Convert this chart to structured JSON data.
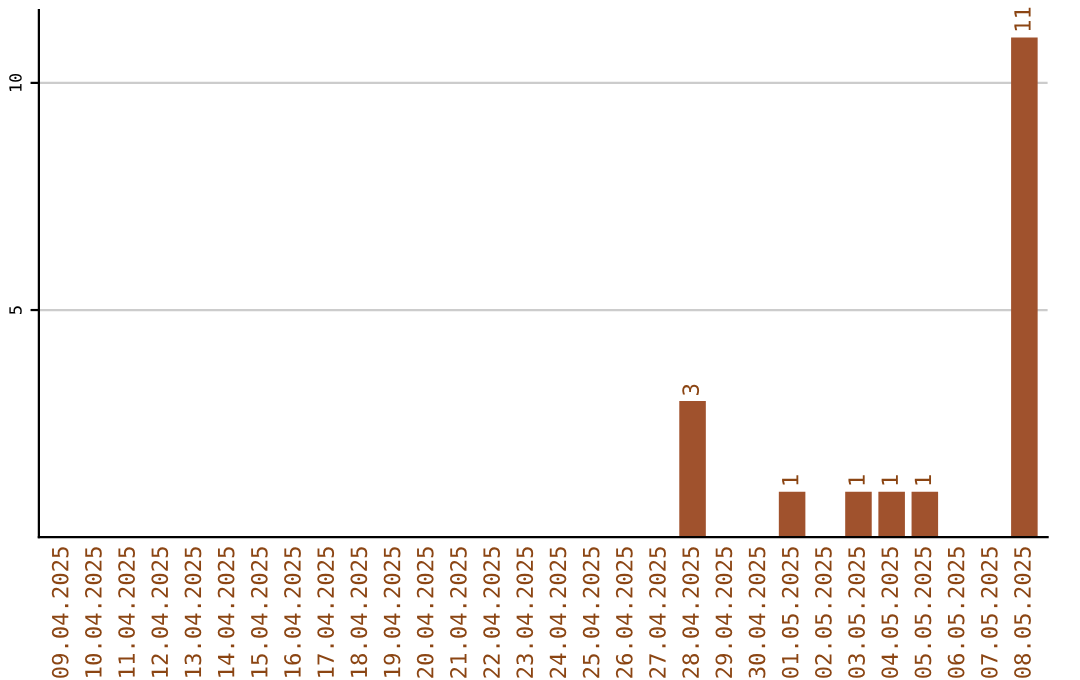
{
  "chart_data": {
    "type": "bar",
    "categories": [
      "09.04.2025",
      "10.04.2025",
      "11.04.2025",
      "12.04.2025",
      "13.04.2025",
      "14.04.2025",
      "15.04.2025",
      "16.04.2025",
      "17.04.2025",
      "18.04.2025",
      "19.04.2025",
      "20.04.2025",
      "21.04.2025",
      "22.04.2025",
      "23.04.2025",
      "24.04.2025",
      "25.04.2025",
      "26.04.2025",
      "27.04.2025",
      "28.04.2025",
      "29.04.2025",
      "30.04.2025",
      "01.05.2025",
      "02.05.2025",
      "03.05.2025",
      "04.05.2025",
      "05.05.2025",
      "06.05.2025",
      "07.05.2025",
      "08.05.2025"
    ],
    "values": [
      0,
      0,
      0,
      0,
      0,
      0,
      0,
      0,
      0,
      0,
      0,
      0,
      0,
      0,
      0,
      0,
      0,
      0,
      0,
      3,
      0,
      0,
      1,
      0,
      1,
      1,
      1,
      0,
      0,
      11
    ],
    "value_labels": [
      null,
      null,
      null,
      null,
      null,
      null,
      null,
      null,
      null,
      null,
      null,
      null,
      null,
      null,
      null,
      null,
      null,
      null,
      null,
      "3",
      null,
      null,
      "1",
      null,
      "1",
      "1",
      "1",
      null,
      null,
      "11"
    ],
    "color": "#a0522d",
    "ylim": [
      0,
      11.6
    ],
    "yticks": [
      5,
      10
    ],
    "grid": "y",
    "legend": false
  }
}
